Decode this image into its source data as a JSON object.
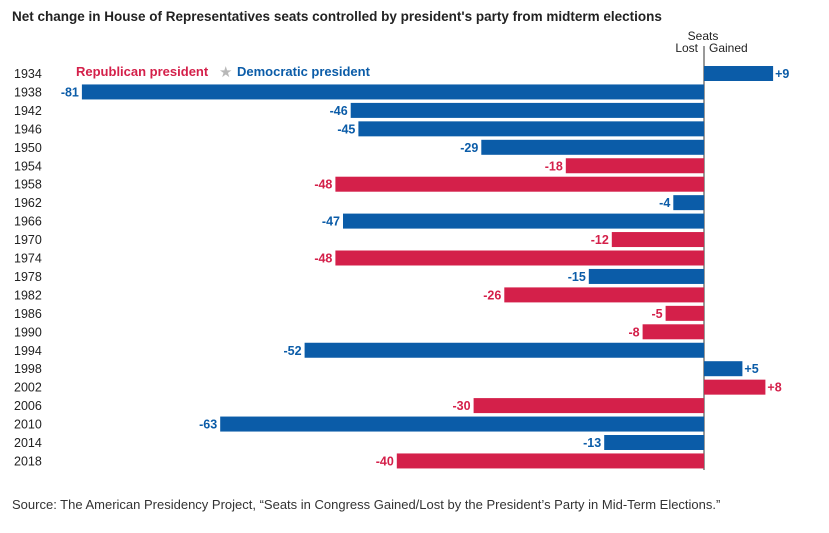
{
  "chart_data": {
    "type": "bar",
    "orientation": "horizontal",
    "title": "Net change in House of Representatives seats controlled by president's party from midterm elections",
    "axis_header": "Seats",
    "lost_label": "Lost",
    "gained_label": "Gained",
    "legend": [
      {
        "name": "Republican president",
        "color": "#d4204a"
      },
      {
        "name": "Democratic president",
        "color": "#0b5ca8"
      }
    ],
    "categories": [
      "1934",
      "1938",
      "1942",
      "1946",
      "1950",
      "1954",
      "1958",
      "1962",
      "1966",
      "1970",
      "1974",
      "1978",
      "1982",
      "1986",
      "1990",
      "1994",
      "1998",
      "2002",
      "2006",
      "2010",
      "2014",
      "2018"
    ],
    "values": [
      9,
      -81,
      -46,
      -45,
      -29,
      -18,
      -48,
      -4,
      -47,
      -12,
      -48,
      -15,
      -26,
      -5,
      -8,
      -52,
      5,
      8,
      -30,
      -63,
      -13,
      -40
    ],
    "value_labels": [
      "+9",
      "-81",
      "-46",
      "-45",
      "-29",
      "-18",
      "-48",
      "-4",
      "-47",
      "-12",
      "-48",
      "-15",
      "-26",
      "-5",
      "-8",
      "-52",
      "+5",
      "+8",
      "-30",
      "-63",
      "-13",
      "-40"
    ],
    "party": [
      "D",
      "D",
      "D",
      "D",
      "D",
      "R",
      "R",
      "D",
      "D",
      "R",
      "R",
      "D",
      "R",
      "R",
      "R",
      "D",
      "D",
      "R",
      "R",
      "D",
      "D",
      "R"
    ]
  },
  "colors": {
    "R": "#d4204a",
    "D": "#0b5ca8",
    "star": "#b8b8b8"
  },
  "source": "Source: The American Presidency Project, “Seats in Congress Gained/Lost by the President’s Party in Mid-Term Elections.”"
}
